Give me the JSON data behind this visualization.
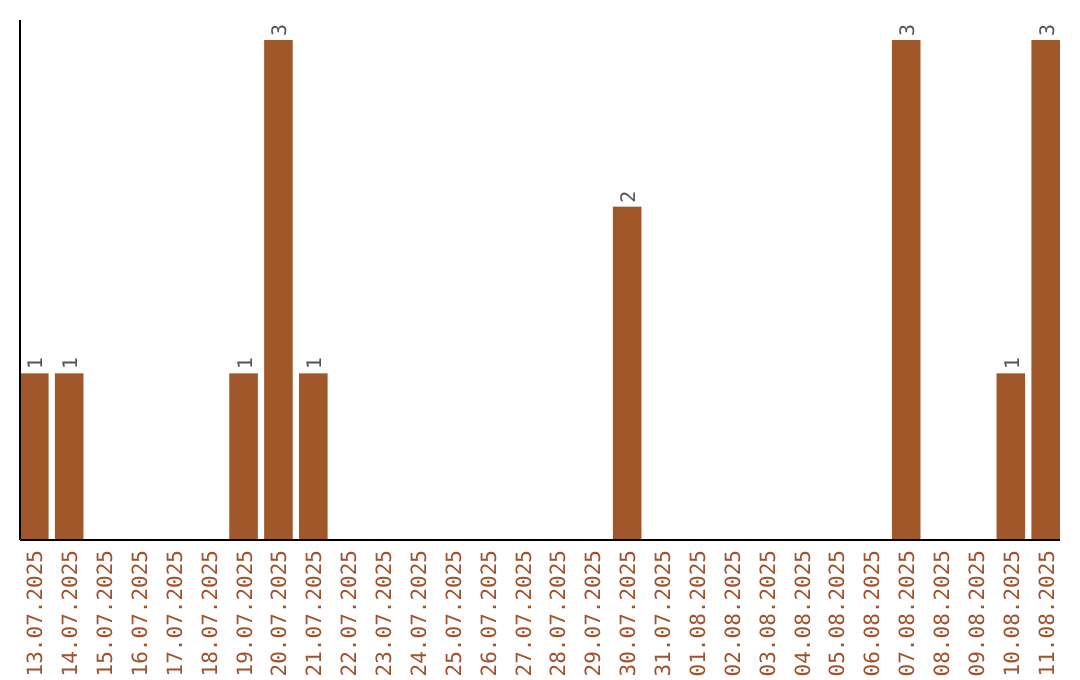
{
  "chart_data": {
    "type": "bar",
    "categories": [
      "13.07.2025",
      "14.07.2025",
      "15.07.2025",
      "16.07.2025",
      "17.07.2025",
      "18.07.2025",
      "19.07.2025",
      "20.07.2025",
      "21.07.2025",
      "22.07.2025",
      "23.07.2025",
      "24.07.2025",
      "25.07.2025",
      "26.07.2025",
      "27.07.2025",
      "28.07.2025",
      "29.07.2025",
      "30.07.2025",
      "31.07.2025",
      "01.08.2025",
      "02.08.2025",
      "03.08.2025",
      "04.08.2025",
      "05.08.2025",
      "06.08.2025",
      "07.08.2025",
      "08.08.2025",
      "09.08.2025",
      "10.08.2025",
      "11.08.2025"
    ],
    "values": [
      1,
      1,
      0,
      0,
      0,
      0,
      1,
      3,
      1,
      0,
      0,
      0,
      0,
      0,
      0,
      0,
      0,
      2,
      0,
      0,
      0,
      0,
      0,
      0,
      0,
      3,
      0,
      0,
      1,
      3
    ],
    "value_labels": [
      "1",
      "1",
      null,
      null,
      null,
      null,
      "1",
      "3",
      "1",
      null,
      null,
      null,
      null,
      null,
      null,
      null,
      null,
      "2",
      null,
      null,
      null,
      null,
      null,
      null,
      null,
      "3",
      null,
      null,
      "1",
      "3"
    ],
    "color": "#a0582a",
    "ylim": [
      0,
      3
    ],
    "tick_labels": "x"
  }
}
